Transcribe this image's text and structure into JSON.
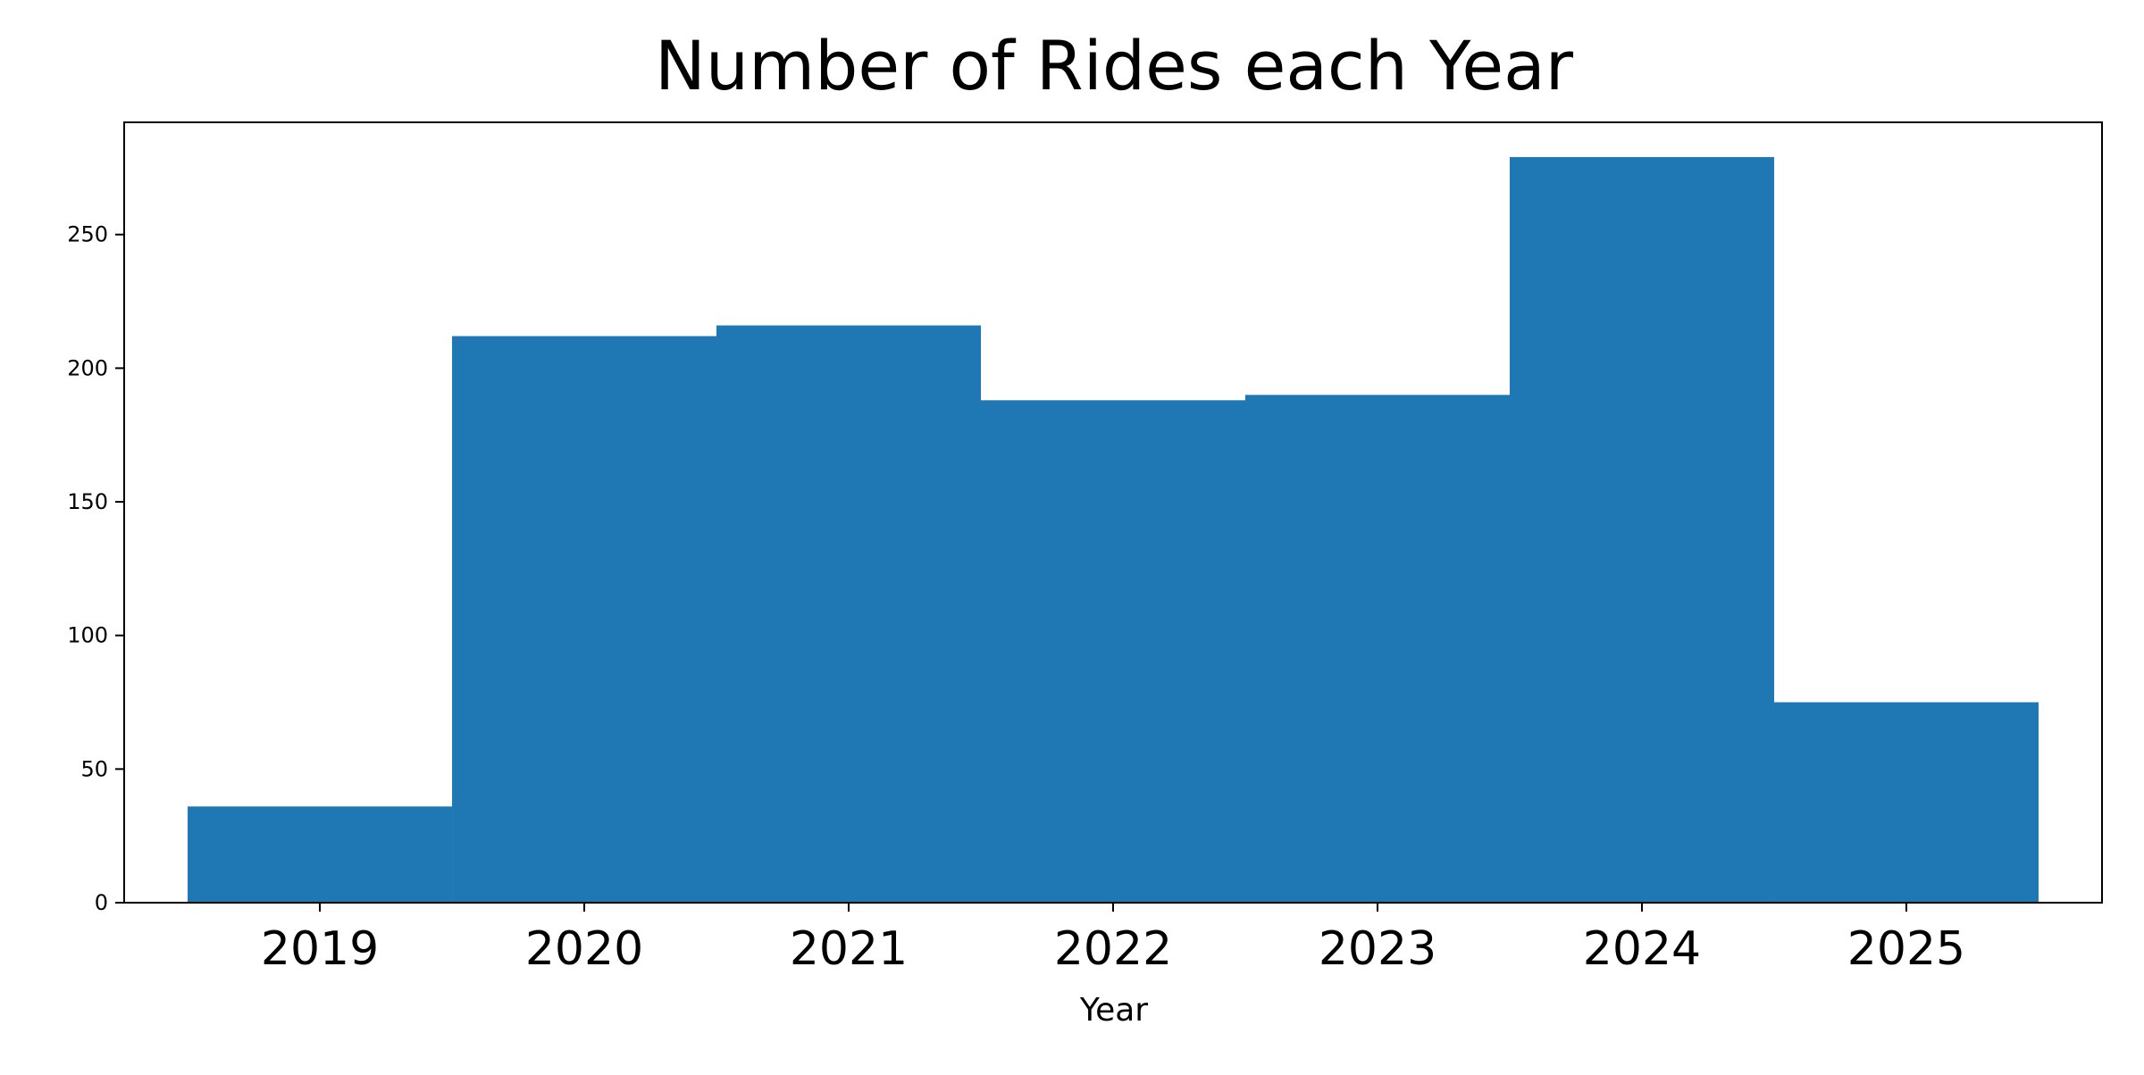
{
  "chart_data": {
    "type": "bar",
    "title": "Number of Rides each Year",
    "xlabel": "Year",
    "ylabel": "",
    "categories": [
      "2019",
      "2020",
      "2021",
      "2022",
      "2023",
      "2024",
      "2025"
    ],
    "values": [
      36,
      212,
      216,
      188,
      190,
      279,
      75
    ],
    "ylim": [
      0,
      292
    ],
    "yticks": [
      0,
      50,
      100,
      150,
      200,
      250
    ],
    "grid": false,
    "colors": {
      "bar": "#1f77b4",
      "axes": "#000000",
      "background": "#ffffff"
    }
  }
}
